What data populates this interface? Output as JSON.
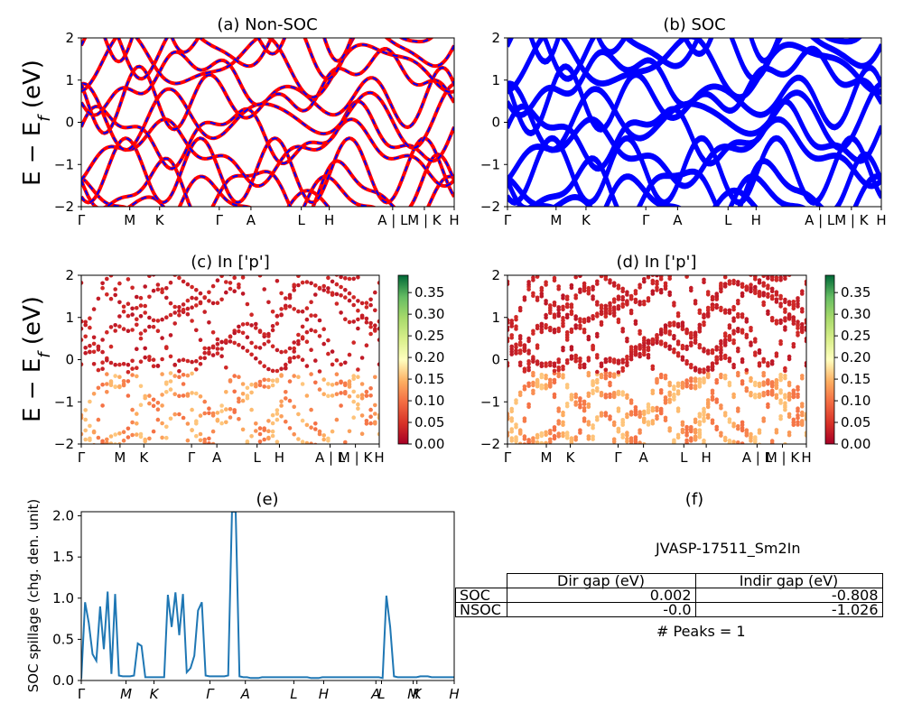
{
  "titles": {
    "a": "(a) Non-SOC",
    "b": "(b) SOC",
    "c": "(c)  In ['p']",
    "d": "(d) In ['p']",
    "e": "(e)",
    "f": "(f)"
  },
  "ylabels": {
    "band": "E − E_f (eV)",
    "spillage": "SOC spillage (chg. den. unit)"
  },
  "kpath_labels": [
    "Γ",
    "M",
    "K",
    "Γ",
    "A",
    "L",
    "H",
    "A | L",
    "M | K",
    "H"
  ],
  "spillage_tick_labels": [
    "Γ",
    "M",
    "K",
    "Γ",
    "A",
    "L",
    "H",
    "A",
    "L",
    "M",
    "K",
    "H"
  ],
  "colorbar_ticks": [
    "0.00",
    "0.05",
    "0.10",
    "0.15",
    "0.20",
    "0.25",
    "0.30",
    "0.35"
  ],
  "info": {
    "jid": "JVASP-17511_Sm2In",
    "peaks": "# Peaks = 1",
    "table": {
      "header": [
        "",
        "Dir gap (eV)",
        "Indir gap (eV)"
      ],
      "rows": [
        [
          "SOC",
          "0.002",
          "-0.808"
        ],
        [
          "NSOC",
          "-0.0",
          "-1.026"
        ]
      ]
    }
  },
  "chart_data": [
    {
      "panel": "a",
      "type": "line",
      "title": "(a) Non-SOC",
      "ylabel": "E − E_f (eV)",
      "ylim": [
        -2,
        2
      ],
      "yticks": [
        -2,
        -1,
        0,
        1,
        2
      ],
      "colors": {
        "non_soc": "#ff0000",
        "soc_overlay": "#0000ff"
      },
      "xticks": [
        "Γ",
        "M",
        "K",
        "Γ",
        "A",
        "L",
        "H",
        "A | L",
        "M | K",
        "H"
      ]
    },
    {
      "panel": "b",
      "type": "line",
      "title": "(b) SOC",
      "ylim": [
        -2,
        2
      ],
      "yticks": [
        -2,
        -1,
        0,
        1,
        2
      ],
      "colors": {
        "soc": "#0000ff"
      },
      "xticks": [
        "Γ",
        "M",
        "K",
        "Γ",
        "A",
        "L",
        "H",
        "A | L",
        "M | K",
        "H"
      ]
    },
    {
      "panel": "c",
      "type": "scatter",
      "title": "(c)  In ['p']",
      "ylabel": "E − E_f (eV)",
      "ylim": [
        -2,
        2
      ],
      "colorbar_range": [
        0,
        0.39
      ],
      "colormap": "RdYlGn"
    },
    {
      "panel": "d",
      "type": "scatter",
      "title": "(d) In ['p']",
      "ylim": [
        -2,
        2
      ],
      "colorbar_range": [
        0,
        0.39
      ],
      "colormap": "RdYlGn"
    },
    {
      "panel": "e",
      "type": "line",
      "title": "(e)",
      "ylabel": "SOC spillage (chg. den. unit)",
      "ylim": [
        0,
        2.05
      ],
      "yticks": [
        0.0,
        0.5,
        1.0,
        1.5,
        2.0
      ],
      "color": "#1f77b4",
      "x": [
        0,
        1,
        2,
        3,
        4,
        5,
        6,
        7,
        8,
        9,
        10,
        11,
        12,
        13,
        14,
        15,
        16,
        17,
        18,
        19,
        20,
        21,
        22,
        23,
        24,
        25,
        26,
        27,
        28,
        29,
        30,
        31,
        32,
        33,
        34,
        35,
        36,
        37,
        38,
        39,
        40,
        41,
        42,
        43,
        44,
        45,
        46,
        47,
        48,
        49,
        50,
        51,
        52,
        53,
        54,
        55,
        56,
        57,
        58,
        59,
        60,
        61,
        62,
        63,
        64,
        65,
        66,
        67,
        68,
        69,
        70,
        71,
        72,
        73,
        74,
        75,
        76,
        77,
        78,
        79,
        80,
        81,
        82,
        83,
        84,
        85,
        86,
        87,
        88,
        89,
        90,
        91,
        92,
        93,
        94,
        95,
        96,
        97,
        98,
        99
      ],
      "values": [
        0.02,
        0.95,
        0.7,
        0.32,
        0.24,
        0.9,
        0.38,
        1.08,
        0.08,
        1.05,
        0.06,
        0.05,
        0.05,
        0.05,
        0.06,
        0.45,
        0.42,
        0.04,
        0.04,
        0.04,
        0.04,
        0.04,
        0.04,
        1.04,
        0.65,
        1.07,
        0.55,
        1.05,
        0.1,
        0.15,
        0.3,
        0.85,
        0.95,
        0.06,
        0.05,
        0.05,
        0.05,
        0.05,
        0.05,
        0.06,
        2.05,
        2.05,
        0.05,
        0.04,
        0.04,
        0.03,
        0.03,
        0.03,
        0.04,
        0.04,
        0.04,
        0.04,
        0.04,
        0.04,
        0.04,
        0.04,
        0.04,
        0.04,
        0.04,
        0.04,
        0.04,
        0.03,
        0.03,
        0.03,
        0.04,
        0.04,
        0.04,
        0.04,
        0.04,
        0.04,
        0.04,
        0.04,
        0.04,
        0.04,
        0.04,
        0.04,
        0.04,
        0.04,
        0.04,
        0.04,
        0.03,
        1.03,
        0.65,
        0.05,
        0.04,
        0.04,
        0.04,
        0.04,
        0.04,
        0.04,
        0.05,
        0.05,
        0.05,
        0.04,
        0.04,
        0.04,
        0.04,
        0.04,
        0.04,
        0.04
      ],
      "xticks": [
        "Γ",
        "M",
        "K",
        "Γ",
        "A",
        "L",
        "H",
        "A",
        "L",
        "M",
        "K",
        "H"
      ]
    }
  ]
}
